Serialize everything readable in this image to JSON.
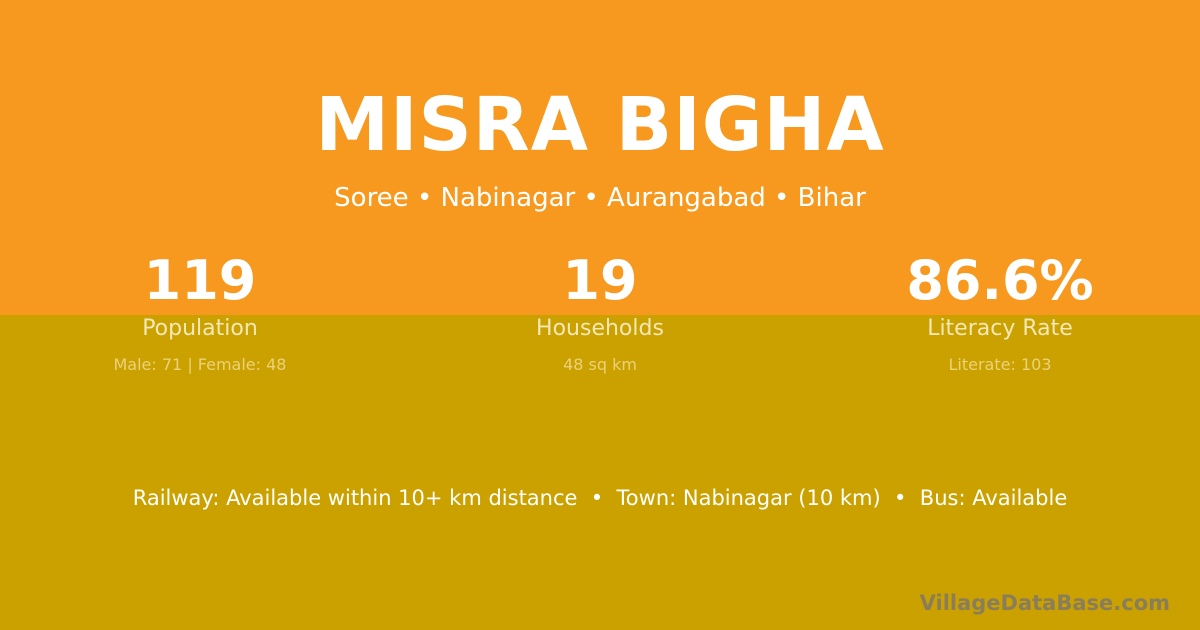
{
  "colors": {
    "top_background": "#F8991F",
    "bottom_background": "#CBA100"
  },
  "title": "MISRA BIGHA",
  "subtitle": "Soree • Nabinagar • Aurangabad • Bihar",
  "stats": [
    {
      "value": "119",
      "label": "Population",
      "detail": "Male: 71 | Female: 48"
    },
    {
      "value": "19",
      "label": "Households",
      "detail": "48 sq km"
    },
    {
      "value": "86.6%",
      "label": "Literacy Rate",
      "detail": "Literate: 103"
    }
  ],
  "facts": "Railway: Available within 10+ km distance  •  Town: Nabinagar (10 km)  •  Bus: Available",
  "brand": "VillageDataBase.com"
}
